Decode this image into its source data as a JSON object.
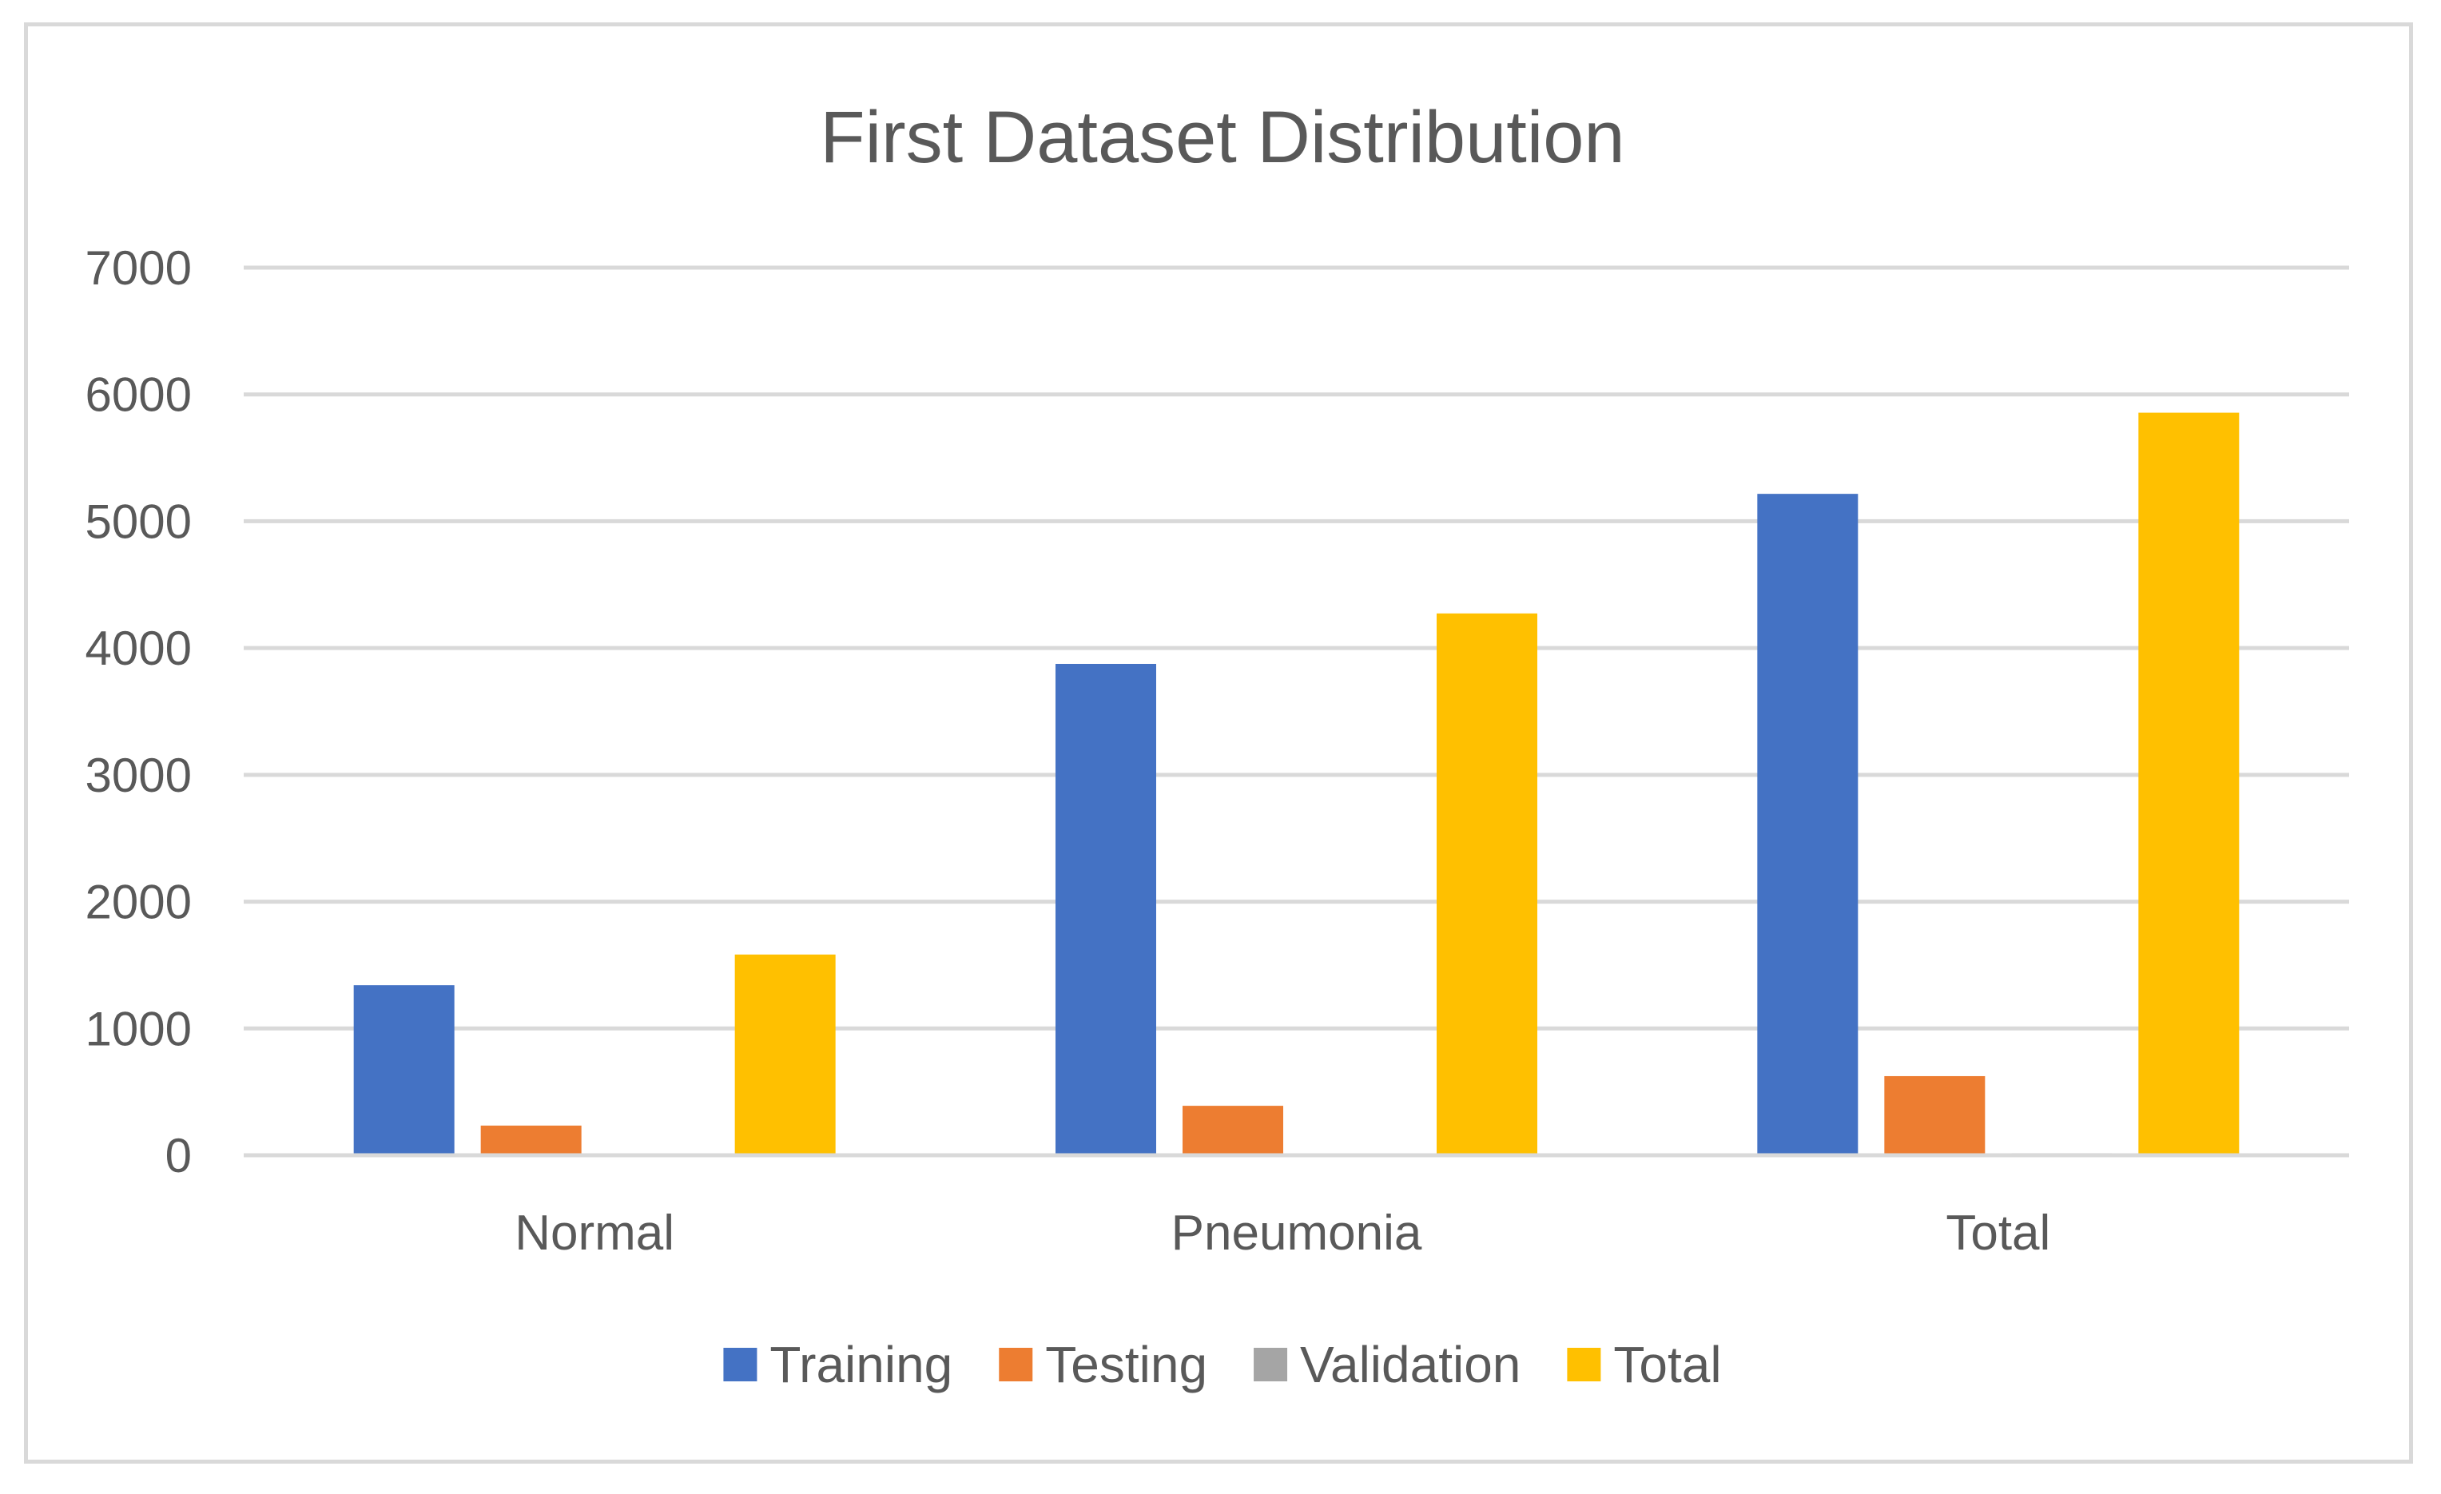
{
  "chart_data": {
    "type": "bar",
    "title": "First Dataset Distribution",
    "xlabel": "",
    "ylabel": "",
    "ylim": [
      0,
      7000
    ],
    "yticks": [
      0,
      1000,
      2000,
      3000,
      4000,
      5000,
      6000,
      7000
    ],
    "grid": true,
    "legend_position": "bottom",
    "categories": [
      "Normal",
      "Pneumonia",
      "Total"
    ],
    "series": [
      {
        "name": "Training",
        "color": "#4472C4",
        "values": [
          1341,
          3875,
          5216
        ]
      },
      {
        "name": "Testing",
        "color": "#ED7D31",
        "values": [
          234,
          390,
          624
        ]
      },
      {
        "name": "Validation",
        "color": "#A5A5A5",
        "values": [
          8,
          8,
          16
        ]
      },
      {
        "name": "Total",
        "color": "#FFC000",
        "values": [
          1583,
          4273,
          5856
        ]
      }
    ]
  }
}
